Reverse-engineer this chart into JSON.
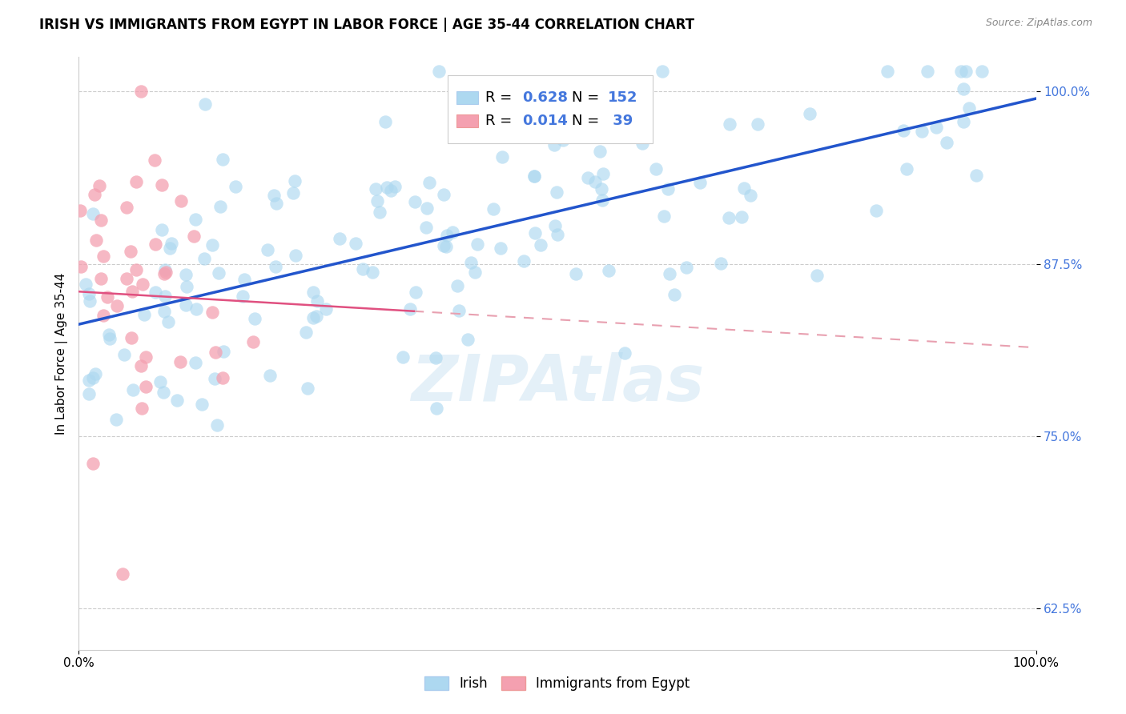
{
  "title": "IRISH VS IMMIGRANTS FROM EGYPT IN LABOR FORCE | AGE 35-44 CORRELATION CHART",
  "source": "Source: ZipAtlas.com",
  "ylabel": "In Labor Force | Age 35-44",
  "xlim": [
    0.0,
    1.0
  ],
  "ylim": [
    0.595,
    1.025
  ],
  "yticks": [
    0.625,
    0.75,
    0.875,
    1.0
  ],
  "ytick_labels": [
    "62.5%",
    "75.0%",
    "87.5%",
    "100.0%"
  ],
  "xticks": [
    0.0,
    1.0
  ],
  "xtick_labels": [
    "0.0%",
    "100.0%"
  ],
  "blue_scatter_color": "#ADD8F0",
  "pink_scatter_color": "#F4A0B0",
  "blue_line_color": "#2255CC",
  "pink_line_color": "#E05080",
  "pink_dash_color": "#E8A0B0",
  "tick_color": "#4477DD",
  "r_blue": 0.628,
  "n_blue": 152,
  "r_pink": 0.014,
  "n_pink": 39,
  "legend_label_blue": "Irish",
  "legend_label_pink": "Immigrants from Egypt",
  "watermark": "ZIPAtlas",
  "background_color": "#ffffff",
  "title_fontsize": 12,
  "axis_label_fontsize": 11,
  "tick_fontsize": 11,
  "legend_fontsize": 13
}
